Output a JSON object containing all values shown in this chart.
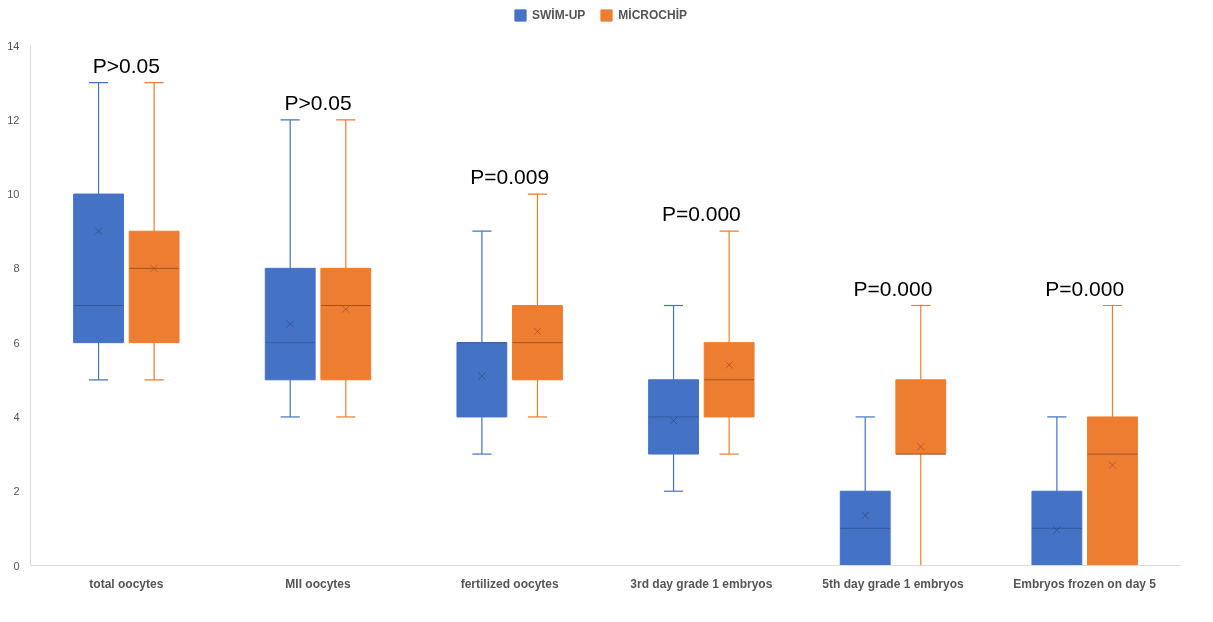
{
  "chart_data": {
    "type": "box",
    "categories": [
      "total oocytes",
      "MII oocytes",
      "fertilized oocytes",
      "3rd day grade 1 embryos",
      "5th day grade 1 embryos",
      "Embryos frozen on day 5"
    ],
    "series": [
      {
        "name": "SWİM-UP",
        "color": "#4472c4",
        "boxes": [
          {
            "low": 5,
            "q1": 6,
            "median": 7,
            "q3": 10,
            "high": 13,
            "mean": 9
          },
          {
            "low": 4,
            "q1": 5,
            "median": 6,
            "q3": 8,
            "high": 12,
            "mean": 6.5
          },
          {
            "low": 3,
            "q1": 4,
            "median": 6,
            "q3": 6,
            "high": 9,
            "mean": 5.1
          },
          {
            "low": 2,
            "q1": 3,
            "median": 4,
            "q3": 5,
            "high": 7,
            "mean": 3.9
          },
          {
            "low": 0,
            "q1": 0,
            "median": 1,
            "q3": 2,
            "high": 4,
            "mean": 1.35
          },
          {
            "low": 0,
            "q1": 0,
            "median": 1,
            "q3": 2,
            "high": 4,
            "mean": 0.95
          }
        ]
      },
      {
        "name": "MİCROCHİP",
        "color": "#ed7d31",
        "boxes": [
          {
            "low": 5,
            "q1": 6,
            "median": 8,
            "q3": 9,
            "high": 13,
            "mean": 8
          },
          {
            "low": 4,
            "q1": 5,
            "median": 7,
            "q3": 8,
            "high": 12,
            "mean": 6.9
          },
          {
            "low": 4,
            "q1": 5,
            "median": 6,
            "q3": 7,
            "high": 10,
            "mean": 6.3
          },
          {
            "low": 3,
            "q1": 4,
            "median": 5,
            "q3": 6,
            "high": 9,
            "mean": 5.4
          },
          {
            "low": 0,
            "q1": 3,
            "median": 3,
            "q3": 5,
            "high": 7,
            "mean": 3.2
          },
          {
            "low": 0,
            "q1": 0,
            "median": 3,
            "q3": 4,
            "high": 7,
            "mean": 2.7
          }
        ]
      }
    ],
    "ylim": [
      0,
      14
    ],
    "yticks": [
      0,
      2,
      4,
      6,
      8,
      10,
      12,
      14
    ],
    "grid": false,
    "legend": "top",
    "marker": "cross",
    "annotations": [
      "P>0.05",
      "P>0.05",
      "P=0.009",
      "P=0.000",
      "P=0.000",
      "P=0.000"
    ]
  }
}
